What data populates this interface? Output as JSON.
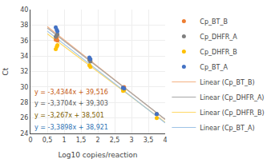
{
  "chart_data": {
    "type": "scatter",
    "xlabel": "Log10 copies/reaction",
    "ylabel": "Ct",
    "xlim": [
      0,
      4
    ],
    "ylim": [
      24,
      40
    ],
    "xticks": [
      0,
      {
        "value": 0.5,
        "label": "0,5"
      },
      1,
      {
        "value": 1.5,
        "label": "1,5"
      },
      2,
      {
        "value": 2.5,
        "label": "2,5"
      },
      3,
      {
        "value": 3.5,
        "label": "3,5"
      },
      4
    ],
    "yticks": [
      24,
      26,
      28,
      30,
      32,
      34,
      36,
      38,
      40
    ],
    "grid": true,
    "legend": "right",
    "series": [
      {
        "name": "Cp_BT_B",
        "type": "scatter",
        "marker": "circle",
        "color": "#ed7d31",
        "x": [
          0.75,
          0.78,
          0.8,
          1.75,
          1.78,
          2.75,
          2.78,
          3.75
        ],
        "values": [
          36.1,
          36.3,
          36.0,
          33.6,
          33.4,
          29.9,
          30.0,
          26.5
        ]
      },
      {
        "name": "Cp_DHFR_A",
        "type": "scatter",
        "marker": "circle",
        "color": "#7f7f7f",
        "x": [
          0.75,
          0.78,
          0.8,
          1.75,
          1.78,
          2.75,
          2.78,
          3.75
        ],
        "values": [
          36.5,
          36.7,
          36.8,
          33.5,
          33.3,
          29.8,
          29.7,
          26.5
        ]
      },
      {
        "name": "Cp_DHFR_B",
        "type": "scatter",
        "marker": "circle",
        "color": "#ffc000",
        "x": [
          0.75,
          0.78,
          0.8,
          1.75,
          1.78,
          2.75,
          2.78,
          3.75
        ],
        "values": [
          34.9,
          35.2,
          35.4,
          32.8,
          32.6,
          29.5,
          29.6,
          26.0
        ]
      },
      {
        "name": "Cp_BT_A",
        "type": "scatter",
        "marker": "circle",
        "color": "#4472c4",
        "x": [
          0.75,
          0.78,
          0.8,
          1.75,
          1.78,
          2.75,
          2.78,
          3.75
        ],
        "values": [
          37.7,
          37.4,
          37.2,
          33.8,
          33.6,
          29.9,
          29.8,
          26.5
        ]
      },
      {
        "name": "Linear (Cp_BT_B)",
        "type": "line",
        "color": "#f4b183",
        "x": [
          0.5,
          4.0
        ],
        "values": [
          37.7988,
          25.7784
        ]
      },
      {
        "name": "Linear (Cp_DHFR_A)",
        "type": "line",
        "color": "#a6a6a6",
        "x": [
          0.5,
          4.0
        ],
        "values": [
          37.6178,
          25.8214
        ]
      },
      {
        "name": "Linear (Cp_DHFR_B)",
        "type": "line",
        "color": "#ffd966",
        "x": [
          0.5,
          4.0
        ],
        "values": [
          36.8675,
          25.433
        ]
      },
      {
        "name": "Linear (Cp_BT_A)",
        "type": "line",
        "color": "#9dc3e6",
        "x": [
          0.5,
          4.0
        ],
        "values": [
          37.2261,
          25.3618
        ]
      }
    ],
    "annotations": [
      {
        "text": "y = -3,4344x + 39,516",
        "color": "#c55a11"
      },
      {
        "text": "y = -3,3704x + 39,303",
        "color": "#595959"
      },
      {
        "text": "y = -3,267x + 38,501",
        "color": "#806000"
      },
      {
        "text": "y = -3,3898x + 38,921",
        "color": "#2e74b5"
      }
    ]
  }
}
